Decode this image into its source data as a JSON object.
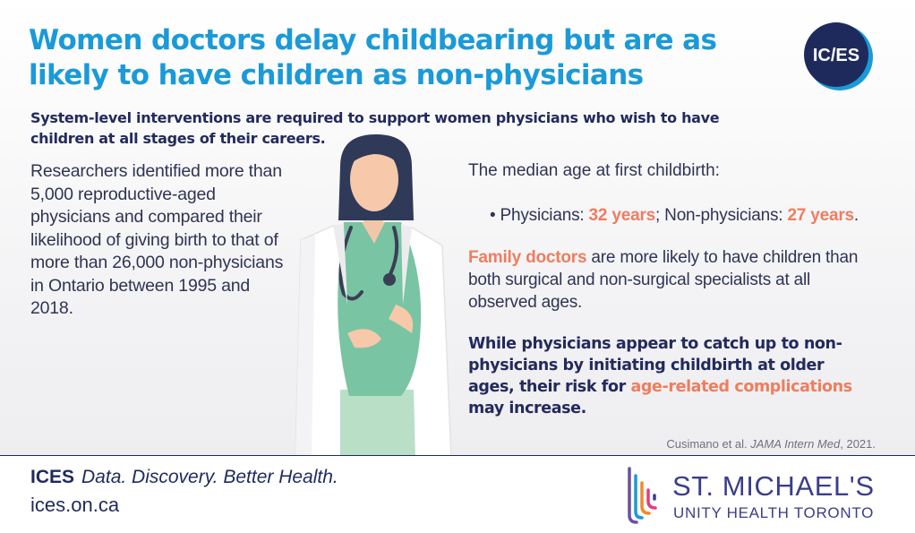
{
  "header": {
    "title": "Women doctors delay childbearing but are as likely to have children as non-physicians",
    "logo_text": "IC/ES"
  },
  "subtitle": "System-level interventions are required to support women physicians who wish to have children at all stages of their careers.",
  "left_paragraph": "Researchers identified  more than 5,000 reproductive-aged physicians and compared their likelihood of giving birth to that of more than  26,000 non-physicians in Ontario between 1995 and 2018.",
  "median": {
    "label": "The median age at first childbirth:",
    "bullet": "•",
    "physicians_label": "Physicians: ",
    "physicians_value": "32 years",
    "separator": "; Non-physicians: ",
    "non_physicians_value": "27 years",
    "end": "."
  },
  "family": {
    "highlight": "Family doctors",
    "rest": " are more likely to have children than both surgical and non-surgical specialists at all observed ages."
  },
  "conclusion": {
    "part1": "While physicians appear to catch up to non-physicians by initiating childbirth at older ages, their risk for ",
    "highlight": "age-related complications",
    "part2": " may increase."
  },
  "citation": {
    "authors": "Cusimano et al. ",
    "journal": "JAMA Intern Med",
    "year": ", 2021."
  },
  "footer": {
    "brand": "ICES",
    "tagline": "Data. Discovery. Better Health.",
    "url": "ices.on.ca",
    "partner_name": "ST. MICHAEL'S",
    "partner_sub": "UNITY HEALTH TORONTO"
  },
  "colors": {
    "title": "#1a9ad8",
    "navy": "#232a5c",
    "accent": "#ef7d5e",
    "scrubs": "#79c4a3"
  },
  "icons": [
    "ices-logo-icon",
    "doctor-illustration",
    "st-michaels-logo-icon"
  ]
}
